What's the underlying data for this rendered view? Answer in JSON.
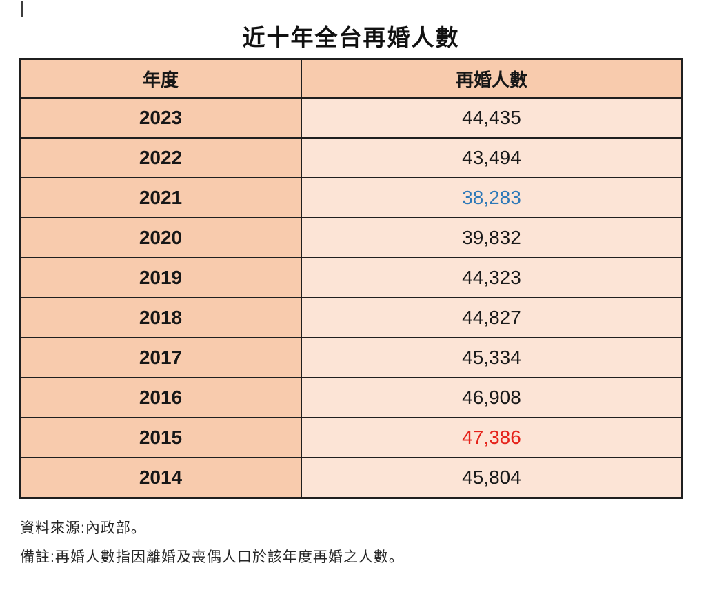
{
  "page": {
    "title": "近十年全台再婚人數"
  },
  "table": {
    "headers": [
      "年度",
      "再婚人數"
    ],
    "rows": [
      {
        "year": "2023",
        "value": "44,435",
        "color": "default"
      },
      {
        "year": "2022",
        "value": "43,494",
        "color": "default"
      },
      {
        "year": "2021",
        "value": "38,283",
        "color": "blue"
      },
      {
        "year": "2020",
        "value": "39,832",
        "color": "default"
      },
      {
        "year": "2019",
        "value": "44,323",
        "color": "default"
      },
      {
        "year": "2018",
        "value": "44,827",
        "color": "default"
      },
      {
        "year": "2017",
        "value": "45,334",
        "color": "default"
      },
      {
        "year": "2016",
        "value": "46,908",
        "color": "default"
      },
      {
        "year": "2015",
        "value": "47,386",
        "color": "red"
      },
      {
        "year": "2014",
        "value": "45,804",
        "color": "default"
      }
    ]
  },
  "footer": {
    "source": "資料來源:內政部。",
    "note": "備註:再婚人數指因離婚及喪偶人口於該年度再婚之人數。"
  },
  "colors": {
    "default": "#1a1a1a",
    "blue": "#2e79b8",
    "red": "#e5231b",
    "header_row_bg": "#f8cbad",
    "year_column_bg": "#f8cbad",
    "value_column_bg": "#fce4d6",
    "border": "#1f1f1f"
  },
  "chart_data": {
    "type": "table",
    "title": "近十年全台再婚人數",
    "columns": [
      "年度",
      "再婚人數"
    ],
    "rows": [
      {
        "year": 2023,
        "remarriages": 44435
      },
      {
        "year": 2022,
        "remarriages": 43494
      },
      {
        "year": 2021,
        "remarriages": 38283
      },
      {
        "year": 2020,
        "remarriages": 39832
      },
      {
        "year": 2019,
        "remarriages": 44323
      },
      {
        "year": 2018,
        "remarriages": 44827
      },
      {
        "year": 2017,
        "remarriages": 45334
      },
      {
        "year": 2016,
        "remarriages": 46908
      },
      {
        "year": 2015,
        "remarriages": 47386
      },
      {
        "year": 2014,
        "remarriages": 45804
      }
    ],
    "value_colors": {
      "2021": "blue (#2e79b8)",
      "2015": "red (#e5231b)"
    },
    "source": "資料來源:內政部。",
    "note": "備註:再婚人數指因離婚及喪偶人口於該年度再婚之人數。"
  }
}
